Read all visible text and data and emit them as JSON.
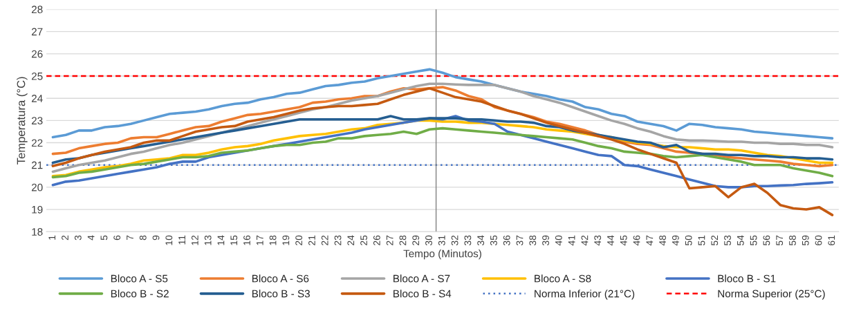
{
  "chart_data": {
    "type": "line",
    "xlabel": "Tempo (Minutos)",
    "ylabel": "Temperatura (°C)",
    "x": [
      1,
      2,
      3,
      4,
      5,
      6,
      7,
      8,
      9,
      10,
      11,
      12,
      13,
      14,
      15,
      16,
      17,
      18,
      19,
      20,
      21,
      22,
      23,
      24,
      25,
      26,
      27,
      28,
      29,
      30,
      31,
      32,
      33,
      34,
      35,
      36,
      37,
      38,
      39,
      40,
      41,
      42,
      43,
      44,
      45,
      46,
      47,
      48,
      49,
      50,
      51,
      52,
      53,
      54,
      55,
      56,
      57,
      58,
      59,
      60,
      61
    ],
    "xlim": [
      0.5,
      61.5
    ],
    "xticks": [
      1,
      2,
      3,
      4,
      5,
      6,
      7,
      8,
      9,
      10,
      11,
      12,
      13,
      14,
      15,
      16,
      17,
      18,
      19,
      20,
      21,
      22,
      23,
      24,
      25,
      26,
      27,
      28,
      29,
      30,
      31,
      32,
      33,
      34,
      35,
      36,
      37,
      38,
      39,
      40,
      41,
      42,
      43,
      44,
      45,
      46,
      47,
      48,
      49,
      50,
      51,
      52,
      53,
      54,
      55,
      56,
      57,
      58,
      59,
      60,
      61
    ],
    "ylim": [
      18,
      28
    ],
    "yticks": [
      18,
      19,
      20,
      21,
      22,
      23,
      24,
      25,
      26,
      27,
      28
    ],
    "grid": "y",
    "legend": "bottom",
    "marker": "none",
    "line_style": "solid",
    "series": [
      {
        "name": "Bloco A - S5",
        "color": "#5b9bd5",
        "values": [
          22.25,
          22.35,
          22.55,
          22.55,
          22.7,
          22.75,
          22.85,
          23.0,
          23.15,
          23.3,
          23.35,
          23.4,
          23.5,
          23.65,
          23.75,
          23.8,
          23.95,
          24.05,
          24.2,
          24.25,
          24.4,
          24.55,
          24.6,
          24.7,
          24.75,
          24.9,
          25.0,
          25.1,
          25.2,
          25.3,
          25.15,
          24.95,
          24.85,
          24.75,
          24.6,
          24.45,
          24.3,
          24.2,
          24.1,
          23.95,
          23.85,
          23.6,
          23.5,
          23.3,
          23.2,
          22.95,
          22.85,
          22.75,
          22.55,
          22.85,
          22.8,
          22.7,
          22.65,
          22.6,
          22.5,
          22.45,
          22.4,
          22.35,
          22.3,
          22.25,
          22.2
        ]
      },
      {
        "name": "Bloco A - S6",
        "color": "#ed7d31",
        "values": [
          21.5,
          21.55,
          21.75,
          21.85,
          21.95,
          22.0,
          22.2,
          22.25,
          22.25,
          22.4,
          22.55,
          22.7,
          22.75,
          22.95,
          23.1,
          23.25,
          23.3,
          23.4,
          23.5,
          23.6,
          23.8,
          23.85,
          23.95,
          24.0,
          24.1,
          24.1,
          24.3,
          24.45,
          24.4,
          24.45,
          24.5,
          24.35,
          24.1,
          23.95,
          23.6,
          23.45,
          23.3,
          23.15,
          22.95,
          22.85,
          22.7,
          22.55,
          22.35,
          22.2,
          22.05,
          21.95,
          21.9,
          21.75,
          21.6,
          21.55,
          21.5,
          21.45,
          21.35,
          21.3,
          21.25,
          21.2,
          21.15,
          21.05,
          21.0,
          20.95,
          21.0
        ]
      },
      {
        "name": "Bloco A - S7",
        "color": "#a5a5a5",
        "values": [
          20.7,
          20.85,
          21.0,
          21.1,
          21.2,
          21.35,
          21.5,
          21.6,
          21.75,
          21.9,
          22.0,
          22.15,
          22.3,
          22.45,
          22.6,
          22.75,
          22.9,
          23.05,
          23.2,
          23.35,
          23.5,
          23.6,
          23.75,
          23.9,
          24.0,
          24.1,
          24.25,
          24.4,
          24.55,
          24.65,
          24.65,
          24.62,
          24.6,
          24.6,
          24.6,
          24.45,
          24.3,
          24.1,
          23.95,
          23.8,
          23.6,
          23.4,
          23.2,
          23.0,
          22.85,
          22.65,
          22.5,
          22.3,
          22.15,
          22.1,
          22.1,
          22.08,
          22.05,
          22.05,
          22.0,
          22.0,
          21.95,
          21.95,
          21.9,
          21.9,
          21.8
        ]
      },
      {
        "name": "Bloco A - S8",
        "color": "#ffc000",
        "values": [
          20.5,
          20.55,
          20.7,
          20.8,
          20.9,
          20.95,
          21.05,
          21.2,
          21.25,
          21.3,
          21.45,
          21.45,
          21.55,
          21.7,
          21.8,
          21.85,
          21.95,
          22.1,
          22.2,
          22.3,
          22.35,
          22.4,
          22.5,
          22.6,
          22.65,
          22.8,
          22.85,
          22.9,
          23.0,
          23.0,
          22.95,
          22.95,
          22.9,
          22.9,
          22.85,
          22.8,
          22.75,
          22.7,
          22.6,
          22.55,
          22.5,
          22.4,
          22.3,
          22.25,
          22.1,
          22.0,
          21.95,
          21.85,
          21.8,
          21.8,
          21.75,
          21.7,
          21.7,
          21.65,
          21.55,
          21.45,
          21.4,
          21.3,
          21.2,
          21.1,
          21.1
        ]
      },
      {
        "name": "Bloco B - S1",
        "color": "#4472c4",
        "values": [
          20.1,
          20.25,
          20.3,
          20.4,
          20.5,
          20.6,
          20.7,
          20.8,
          20.9,
          21.05,
          21.15,
          21.15,
          21.35,
          21.45,
          21.55,
          21.65,
          21.75,
          21.85,
          21.95,
          22.05,
          22.15,
          22.25,
          22.35,
          22.45,
          22.6,
          22.7,
          22.8,
          22.9,
          23.0,
          23.1,
          23.05,
          23.2,
          23.0,
          22.95,
          22.85,
          22.5,
          22.35,
          22.2,
          22.05,
          21.9,
          21.75,
          21.6,
          21.45,
          21.4,
          21.0,
          20.95,
          20.8,
          20.65,
          20.5,
          20.35,
          20.2,
          20.05,
          20.0,
          20.0,
          20.05,
          20.05,
          20.08,
          20.1,
          20.15,
          20.18,
          20.22
        ]
      },
      {
        "name": "Bloco B - S2",
        "color": "#70ad47",
        "values": [
          20.45,
          20.5,
          20.65,
          20.7,
          20.8,
          20.9,
          21.0,
          21.05,
          21.15,
          21.25,
          21.35,
          21.35,
          21.4,
          21.55,
          21.6,
          21.65,
          21.75,
          21.85,
          21.9,
          21.9,
          22.0,
          22.05,
          22.2,
          22.2,
          22.3,
          22.35,
          22.4,
          22.5,
          22.4,
          22.6,
          22.65,
          22.6,
          22.55,
          22.5,
          22.45,
          22.4,
          22.35,
          22.3,
          22.25,
          22.2,
          22.15,
          22.0,
          21.85,
          21.75,
          21.6,
          21.55,
          21.5,
          21.4,
          21.35,
          21.4,
          21.45,
          21.35,
          21.25,
          21.15,
          21.0,
          21.0,
          21.0,
          20.85,
          20.75,
          20.65,
          20.5
        ]
      },
      {
        "name": "Bloco B - S3",
        "color": "#255e91",
        "values": [
          21.1,
          21.25,
          21.3,
          21.45,
          21.55,
          21.65,
          21.75,
          21.85,
          21.95,
          22.05,
          22.15,
          22.25,
          22.35,
          22.45,
          22.55,
          22.65,
          22.75,
          22.85,
          22.95,
          23.05,
          23.05,
          23.05,
          23.05,
          23.05,
          23.05,
          23.05,
          23.2,
          23.05,
          23.05,
          23.1,
          23.1,
          23.1,
          23.05,
          23.05,
          23.0,
          22.95,
          22.95,
          22.9,
          22.75,
          22.7,
          22.55,
          22.45,
          22.35,
          22.25,
          22.15,
          22.05,
          22.0,
          21.8,
          21.9,
          21.6,
          21.5,
          21.5,
          21.45,
          21.45,
          21.4,
          21.4,
          21.35,
          21.35,
          21.3,
          21.3,
          21.25
        ]
      },
      {
        "name": "Bloco B - S4",
        "color": "#c55a11",
        "values": [
          20.95,
          21.1,
          21.3,
          21.45,
          21.6,
          21.7,
          21.8,
          22.0,
          22.1,
          22.1,
          22.3,
          22.5,
          22.6,
          22.7,
          22.75,
          22.95,
          23.05,
          23.15,
          23.3,
          23.45,
          23.55,
          23.6,
          23.65,
          23.65,
          23.7,
          23.75,
          23.95,
          24.15,
          24.3,
          24.45,
          24.25,
          24.05,
          23.95,
          23.85,
          23.65,
          23.45,
          23.3,
          23.1,
          22.9,
          22.75,
          22.6,
          22.45,
          22.3,
          22.15,
          21.95,
          21.7,
          21.5,
          21.3,
          21.1,
          19.95,
          20.0,
          20.05,
          19.55,
          20.0,
          20.15,
          19.75,
          19.2,
          19.05,
          19.0,
          19.1,
          18.75
        ]
      }
    ],
    "ref_lines": [
      {
        "axis": "y",
        "value": 21,
        "label": "Norma Inferior (21°C)",
        "color": "#4472c4",
        "line_style": "dotted"
      },
      {
        "axis": "y",
        "value": 25,
        "label": "Norma Superior (25°C)",
        "color": "#ff0000",
        "line_style": "dashed"
      },
      {
        "axis": "x",
        "value": 30.5,
        "color": "#808080",
        "line_style": "solid"
      }
    ]
  }
}
